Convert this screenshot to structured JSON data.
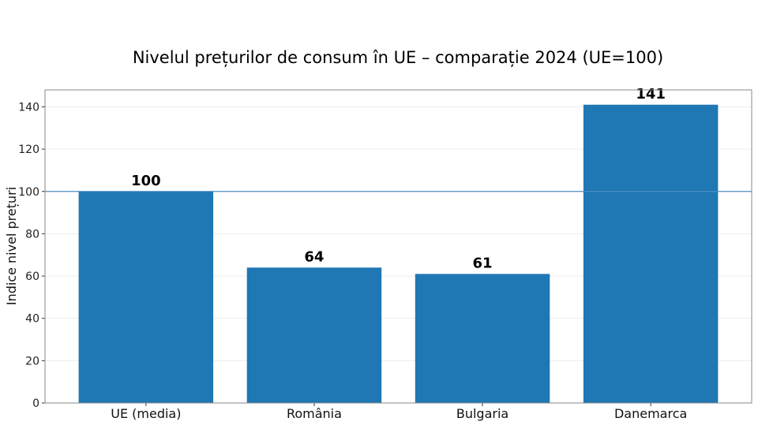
{
  "chart_data": {
    "type": "bar",
    "title": "Nivelul prețurilor de consum în UE – comparație 2024 (UE=100)",
    "xlabel": "",
    "ylabel": "Indice nivel prețuri",
    "categories": [
      "UE (media)",
      "România",
      "Bulgaria",
      "Danemarca"
    ],
    "values": [
      100,
      64,
      61,
      141
    ],
    "data_labels": [
      "100",
      "64",
      "61",
      "141"
    ],
    "ylim": [
      0,
      148
    ],
    "yticks": [
      0,
      20,
      40,
      60,
      80,
      100,
      120,
      140
    ],
    "reference_line": 100,
    "grid": "y",
    "bar_color": "#1f77b4",
    "reference_line_color": "#4c8fc4"
  }
}
